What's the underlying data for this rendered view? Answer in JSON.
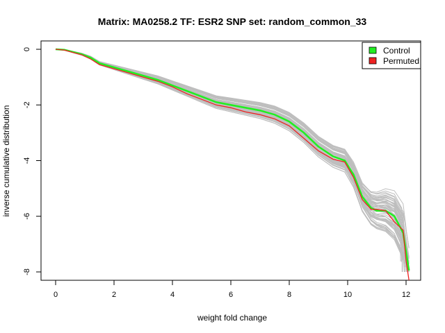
{
  "chart_data": {
    "type": "line",
    "title": "Matrix: MA0258.2 TF: ESR2 SNP set: random_common_33",
    "xlabel": "weight fold change",
    "ylabel": "inverse cumulative distribution",
    "xlim": [
      -0.5,
      12.5
    ],
    "ylim": [
      -8.3,
      0.3
    ],
    "x_ticks": [
      0,
      2,
      4,
      6,
      8,
      10,
      12
    ],
    "y_ticks": [
      0,
      -2,
      -4,
      -6,
      -8
    ],
    "x_tick_labels": [
      "0",
      "2",
      "4",
      "6",
      "8",
      "10",
      "12"
    ],
    "y_tick_labels": [
      "0",
      "-2",
      "-4",
      "-6",
      "-8"
    ],
    "grid": false,
    "legend": {
      "placement": "top-right",
      "entries": [
        {
          "label": "Control",
          "color": "#22ee22"
        },
        {
          "label": "Permuted",
          "color": "#ee2222"
        }
      ]
    },
    "background_series": {
      "color": "#bebebe",
      "count": 60,
      "description_of_spread": "random permutation curves"
    },
    "series": [
      {
        "name": "Control",
        "color": "#22ee22",
        "x": [
          0,
          0.3,
          0.6,
          0.9,
          1.2,
          1.5,
          2.0,
          2.5,
          3.0,
          3.5,
          4.0,
          4.5,
          5.0,
          5.5,
          6.0,
          6.5,
          7.0,
          7.5,
          8.0,
          8.5,
          9.0,
          9.5,
          9.9,
          10.2,
          10.5,
          10.8,
          11.0,
          11.3,
          11.6,
          11.9,
          12.1
        ],
        "y": [
          0,
          -0.02,
          -0.1,
          -0.18,
          -0.3,
          -0.5,
          -0.65,
          -0.8,
          -0.95,
          -1.1,
          -1.3,
          -1.5,
          -1.7,
          -1.9,
          -2.0,
          -2.1,
          -2.2,
          -2.35,
          -2.6,
          -3.0,
          -3.5,
          -3.85,
          -4.0,
          -4.5,
          -5.3,
          -5.7,
          -5.8,
          -5.8,
          -6.0,
          -6.6,
          -7.95
        ]
      },
      {
        "name": "Permuted",
        "color": "#ee2222",
        "x": [
          0,
          0.3,
          0.6,
          0.9,
          1.2,
          1.5,
          2.0,
          2.5,
          3.0,
          3.5,
          4.0,
          4.5,
          5.0,
          5.5,
          6.0,
          6.5,
          7.0,
          7.5,
          8.0,
          8.5,
          9.0,
          9.5,
          9.9,
          10.2,
          10.5,
          10.8,
          11.0,
          11.3,
          11.6,
          11.9,
          12.0,
          12.1
        ],
        "y": [
          0,
          -0.03,
          -0.12,
          -0.2,
          -0.35,
          -0.55,
          -0.7,
          -0.85,
          -1.0,
          -1.15,
          -1.35,
          -1.6,
          -1.8,
          -2.0,
          -2.1,
          -2.25,
          -2.35,
          -2.5,
          -2.75,
          -3.2,
          -3.65,
          -3.95,
          -4.05,
          -4.6,
          -5.4,
          -5.75,
          -5.75,
          -5.8,
          -6.2,
          -6.5,
          -7.6,
          -8.3
        ]
      }
    ]
  }
}
